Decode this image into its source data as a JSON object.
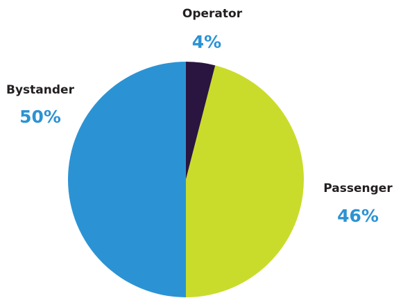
{
  "chart_data": {
    "type": "pie",
    "categories": [
      "Operator",
      "Passenger",
      "Bystander"
    ],
    "values": [
      4,
      46,
      50
    ],
    "value_labels": [
      "4%",
      "46%",
      "50%"
    ],
    "colors": [
      "#2a1540",
      "#c9dc2c",
      "#2b93d4"
    ],
    "label_color": "#2b93d4"
  }
}
